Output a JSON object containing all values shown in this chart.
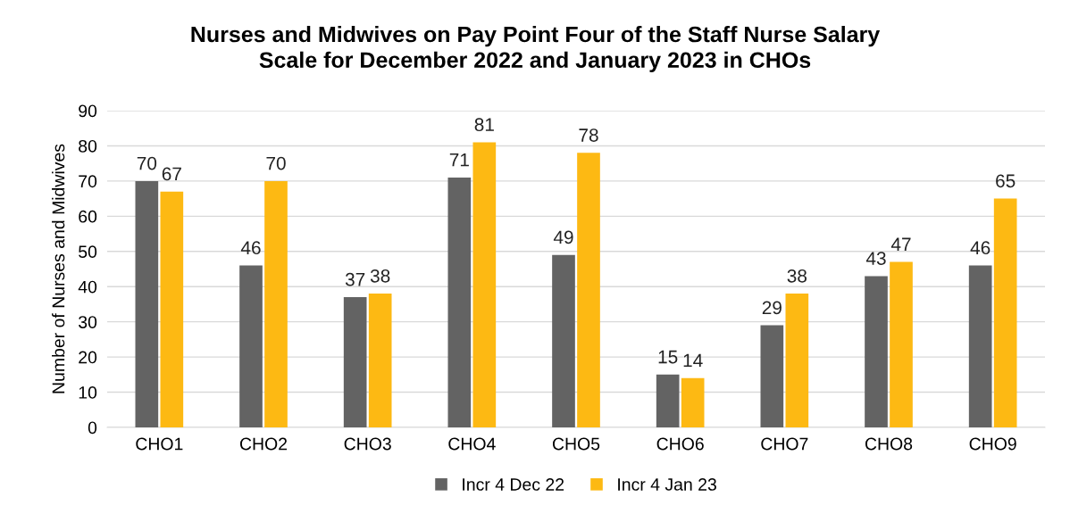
{
  "chart_data": {
    "type": "bar",
    "title": "Nurses and Midwives on Pay Point Four of the Staff Nurse Salary\nScale for December 2022 and January 2023 in CHOs",
    "ylabel": "Number of Nurses and Midwives",
    "categories": [
      "CHO1",
      "CHO2",
      "CHO3",
      "CHO4",
      "CHO5",
      "CHO6",
      "CHO7",
      "CHO8",
      "CHO9"
    ],
    "series": [
      {
        "name": "Incr 4 Dec 22",
        "color": "#636363",
        "values": [
          70,
          46,
          37,
          71,
          49,
          15,
          29,
          43,
          46
        ]
      },
      {
        "name": "Incr 4 Jan 23",
        "color": "#fdb913",
        "values": [
          67,
          70,
          38,
          81,
          78,
          14,
          38,
          47,
          65
        ]
      }
    ],
    "ylim": [
      0,
      90
    ],
    "yticks": [
      0,
      10,
      20,
      30,
      40,
      50,
      60,
      70,
      80,
      90
    ],
    "grid": "y",
    "legend": "bottom",
    "data_labels": true
  }
}
